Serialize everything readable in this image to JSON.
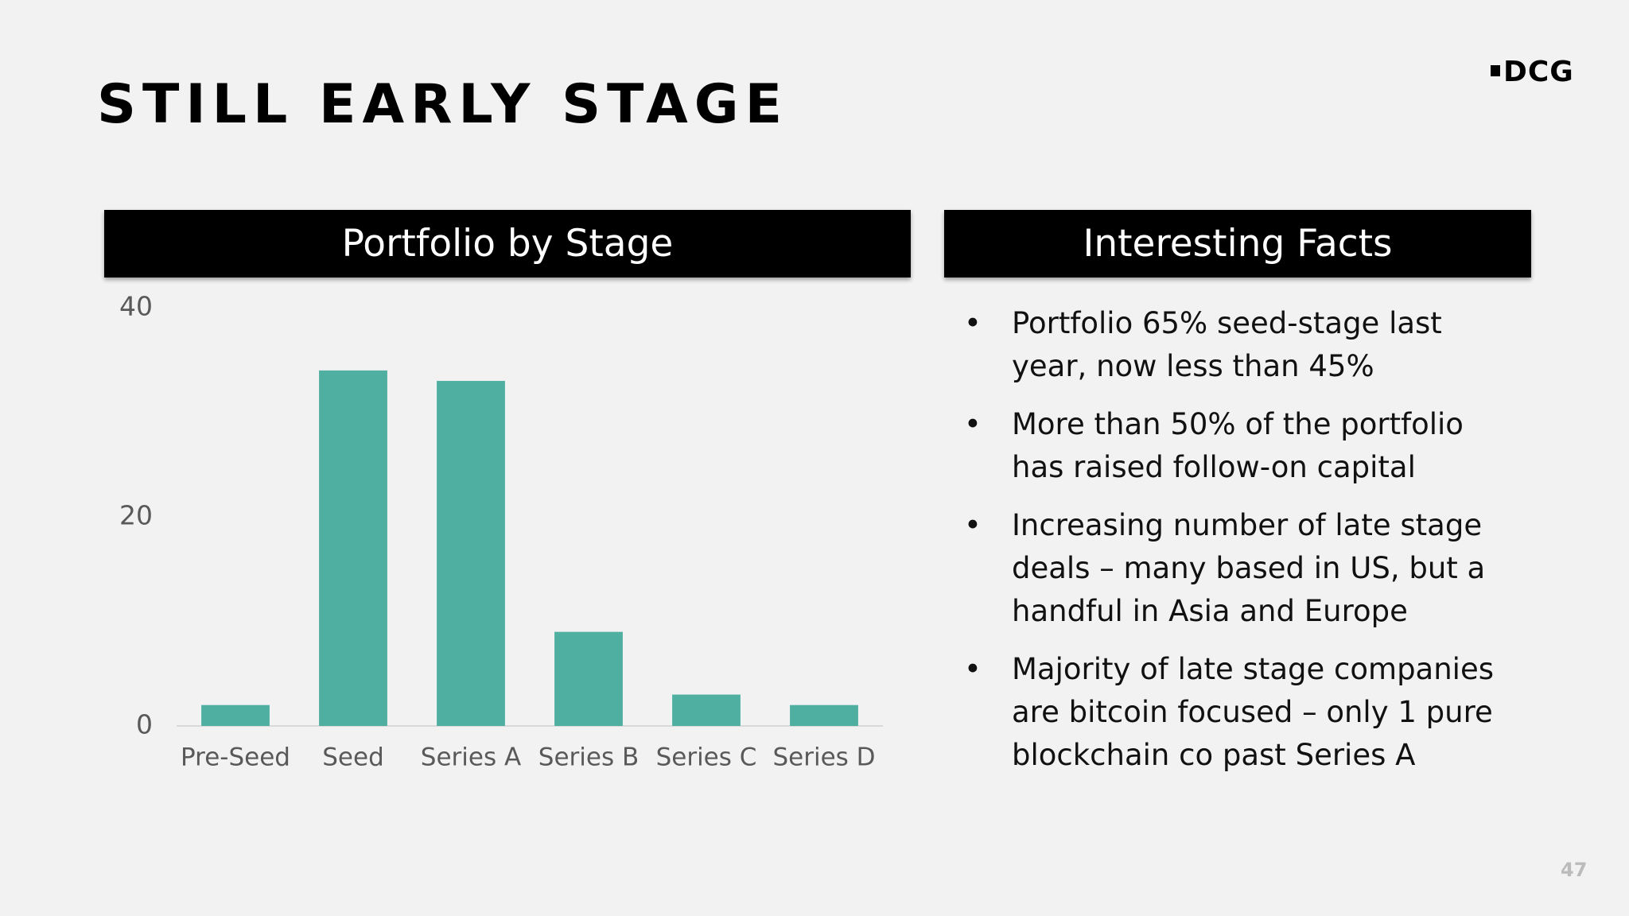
{
  "title": "STILL EARLY STAGE",
  "logo": "DCG",
  "page_number": "47",
  "chart_panel": {
    "header": "Portfolio by Stage"
  },
  "facts_panel": {
    "header": "Interesting Facts",
    "bullets": [
      "Portfolio 65% seed-stage last year, now less than 45%",
      "More than 50% of the portfolio has raised follow-on capital",
      "Increasing number of late stage deals – many based in US, but a handful in Asia and Europe",
      "Majority of late stage companies are bitcoin focused – only 1 pure blockchain co past Series A"
    ]
  },
  "chart_data": {
    "type": "bar",
    "categories": [
      "Pre-Seed",
      "Seed",
      "Series A",
      "Series B",
      "Series C",
      "Series D"
    ],
    "values": [
      2,
      34,
      33,
      9,
      3,
      2
    ],
    "color": "#4fb0a2",
    "ylim": [
      0,
      40
    ],
    "yticks": [
      0,
      20,
      40
    ],
    "grid": false
  }
}
